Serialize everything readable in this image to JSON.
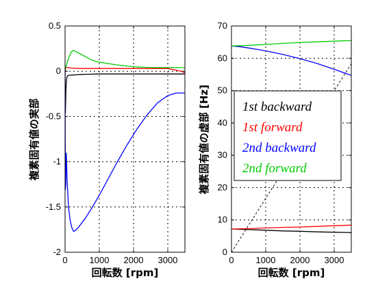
{
  "chart_data": [
    {
      "type": "line",
      "xlabel": "回転数 [rpm]",
      "ylabel": "複素固有値の実部",
      "xlim": [
        0,
        3500
      ],
      "ylim": [
        -2,
        0.5
      ],
      "xticks": [
        "0",
        "1000",
        "2000",
        "3000"
      ],
      "yticks": [
        "-2",
        "-1.5",
        "-1",
        "-0.5",
        "0",
        "0.5"
      ],
      "grid": true,
      "series": [
        {
          "name": "1st backward",
          "color": "#000000",
          "x": [
            0,
            10,
            25,
            40,
            60,
            80,
            100,
            150,
            200,
            300,
            500,
            1000,
            2000,
            3000,
            3500
          ],
          "y": [
            -0.03,
            -0.46,
            -0.2,
            -0.1,
            -0.06,
            -0.05,
            -0.045,
            -0.043,
            -0.042,
            -0.04,
            -0.035,
            -0.03,
            -0.03,
            -0.03,
            -0.03
          ]
        },
        {
          "name": "1st forward",
          "color": "#ff0000",
          "x": [
            0,
            10,
            25,
            50,
            100,
            200,
            400,
            1000,
            2000,
            3000,
            3400,
            3500
          ],
          "y": [
            -0.03,
            0.03,
            0.035,
            0.04,
            0.04,
            0.035,
            0.03,
            0.03,
            0.03,
            0.03,
            0.0,
            -0.02
          ]
        },
        {
          "name": "2nd backward",
          "color": "#0000ff",
          "x": [
            0,
            10,
            20,
            35,
            60,
            100,
            150,
            200,
            250,
            300,
            400,
            600,
            800,
            1000,
            1200,
            1500,
            1800,
            2100,
            2400,
            2700,
            3000,
            3250,
            3500
          ],
          "y": [
            0.02,
            -1.31,
            -1.25,
            -0.9,
            -1.2,
            -1.5,
            -1.65,
            -1.73,
            -1.77,
            -1.76,
            -1.72,
            -1.62,
            -1.5,
            -1.37,
            -1.23,
            -1.02,
            -0.82,
            -0.64,
            -0.48,
            -0.35,
            -0.27,
            -0.24,
            -0.24
          ]
        },
        {
          "name": "2nd forward",
          "color": "#00cc00",
          "x": [
            0,
            50,
            100,
            150,
            200,
            250,
            300,
            400,
            600,
            800,
            1000,
            1500,
            2000,
            2500,
            3000,
            3500
          ],
          "y": [
            0.02,
            0.08,
            0.14,
            0.19,
            0.22,
            0.23,
            0.22,
            0.2,
            0.16,
            0.12,
            0.1,
            0.07,
            0.05,
            0.04,
            0.04,
            0.04
          ]
        }
      ]
    },
    {
      "type": "line",
      "xlabel": "回転数 [rpm]",
      "ylabel": "複素固有値の虚部 [Hz]",
      "xlim": [
        0,
        3500
      ],
      "ylim": [
        0,
        70
      ],
      "xticks": [
        "0",
        "1000",
        "2000",
        "3000"
      ],
      "yticks": [
        "0",
        "10",
        "20",
        "30",
        "40",
        "50",
        "60",
        "70"
      ],
      "grid": true,
      "legend": "center",
      "series": [
        {
          "name": "1st backward",
          "color": "#000000",
          "x": [
            0,
            500,
            1000,
            1500,
            2000,
            2500,
            3000,
            3500
          ],
          "y": [
            7.2,
            7.0,
            6.8,
            6.6,
            6.5,
            6.3,
            6.2,
            6.1
          ]
        },
        {
          "name": "1st forward",
          "color": "#ff0000",
          "x": [
            0,
            500,
            1000,
            1500,
            2000,
            2500,
            3000,
            3500
          ],
          "y": [
            7.2,
            7.3,
            7.5,
            7.7,
            7.8,
            8.0,
            8.2,
            8.4
          ]
        },
        {
          "name": "2nd backward",
          "color": "#0000ff",
          "x": [
            0,
            250,
            500,
            1000,
            1500,
            2000,
            2500,
            3000,
            3500
          ],
          "y": [
            63.8,
            63.6,
            63.2,
            62.3,
            61.2,
            59.9,
            58.4,
            56.6,
            54.7
          ]
        },
        {
          "name": "2nd forward",
          "color": "#00cc00",
          "x": [
            0,
            500,
            1000,
            1500,
            2000,
            2500,
            3000,
            3500
          ],
          "y": [
            63.8,
            64.0,
            64.3,
            64.6,
            64.9,
            65.1,
            65.3,
            65.5
          ]
        },
        {
          "name": "",
          "color": "#000000",
          "dashed": true,
          "x": [
            0,
            3500
          ],
          "y": [
            0,
            58.3
          ]
        }
      ]
    }
  ]
}
